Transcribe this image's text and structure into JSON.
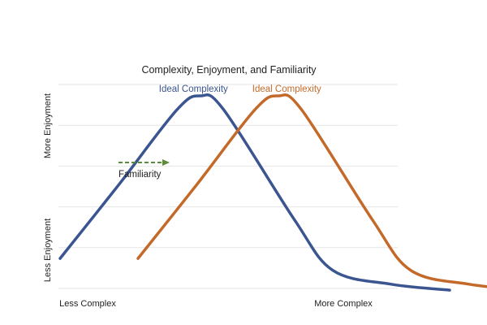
{
  "chart_data": {
    "type": "line",
    "title": "Complexity, Enjoyment, and Familiarity",
    "x_axis": {
      "low_label": "Less Complex",
      "high_label": "More Complex"
    },
    "y_axis": {
      "low_label": "Less Enjoyment",
      "high_label": "More Enjoyment"
    },
    "grid": "horizontal",
    "gridline_count": 6,
    "series": [
      {
        "name": "Ideal Complexity",
        "color": "#3a5590",
        "points": [
          [
            0,
            0.18
          ],
          [
            1.5,
            0.55
          ],
          [
            3.0,
            0.93
          ],
          [
            3.6,
            1.0
          ],
          [
            4.2,
            0.93
          ],
          [
            6.0,
            0.38
          ],
          [
            7.0,
            0.12
          ],
          [
            8.5,
            0.05
          ],
          [
            10.0,
            0.02
          ]
        ]
      },
      {
        "name": "Ideal Complexity",
        "color": "#c36a2a",
        "points": [
          [
            2.0,
            0.18
          ],
          [
            3.5,
            0.55
          ],
          [
            5.0,
            0.93
          ],
          [
            5.6,
            1.0
          ],
          [
            6.2,
            0.93
          ],
          [
            8.0,
            0.38
          ],
          [
            9.0,
            0.12
          ],
          [
            10.5,
            0.05
          ],
          [
            12.0,
            0.02
          ]
        ]
      }
    ],
    "annotations": [
      {
        "text": "Familiarity",
        "arrow": "right",
        "color": "#5a8a3a"
      }
    ]
  }
}
